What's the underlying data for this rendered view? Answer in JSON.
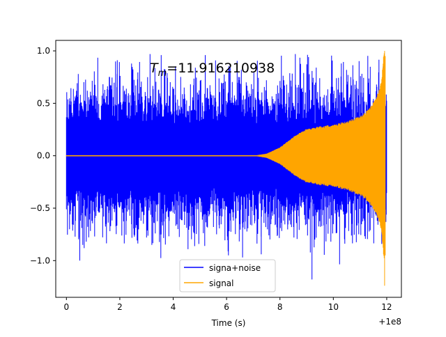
{
  "chart_data": {
    "type": "line",
    "title_annotation": {
      "symbol": "T",
      "subscript": "m",
      "value_text": "=11.916210938"
    },
    "xlabel": "Time (s)",
    "x_offset_label": "+1e8",
    "xlim": [
      -0.4,
      12.55
    ],
    "ylim": [
      -1.35,
      1.1
    ],
    "x_ticks": [
      0,
      2,
      4,
      6,
      8,
      10,
      12
    ],
    "x_tick_labels": [
      "0",
      "2",
      "4",
      "6",
      "8",
      "10",
      "12"
    ],
    "y_ticks": [
      -1.0,
      -0.5,
      0.0,
      0.5,
      1.0
    ],
    "y_tick_labels": [
      "−1.0",
      "−0.5",
      "0.0",
      "0.5",
      "1.0"
    ],
    "grid": false,
    "legend_position": "bottom-center",
    "series": [
      {
        "name": "signa+noise",
        "color": "#0000ff",
        "x_range": [
          0,
          12
        ],
        "noise_envelope": {
          "typical_peak": 0.65,
          "max": 0.97,
          "min": -1.2
        },
        "description_values": {
          "t_start": 0,
          "t_end": 12
        }
      },
      {
        "name": "signal",
        "color": "#ffa500",
        "x_range": [
          0,
          11.95
        ],
        "envelope": [
          {
            "t": 0.0,
            "amp": 0.0
          },
          {
            "t": 7.0,
            "amp": 0.0
          },
          {
            "t": 7.5,
            "amp": 0.02
          },
          {
            "t": 8.0,
            "amp": 0.08
          },
          {
            "t": 8.5,
            "amp": 0.18
          },
          {
            "t": 9.0,
            "amp": 0.26
          },
          {
            "t": 9.5,
            "amp": 0.28
          },
          {
            "t": 10.0,
            "amp": 0.3
          },
          {
            "t": 10.5,
            "amp": 0.33
          },
          {
            "t": 11.0,
            "amp": 0.38
          },
          {
            "t": 11.3,
            "amp": 0.44
          },
          {
            "t": 11.6,
            "amp": 0.55
          },
          {
            "t": 11.8,
            "amp": 0.72
          },
          {
            "t": 11.9,
            "amp": 1.0
          }
        ],
        "peak_max": 1.0,
        "peak_min": -1.24
      }
    ]
  }
}
